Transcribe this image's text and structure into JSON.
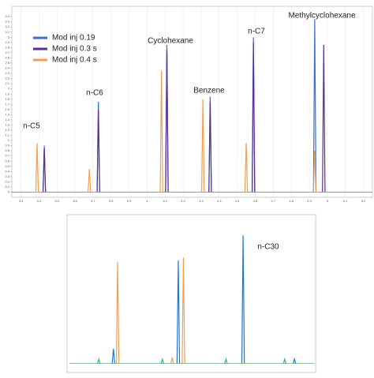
{
  "chart_data": [
    {
      "type": "chromatogram",
      "annotations": [
        "n-C5",
        "n-C6",
        "Cyclohexane",
        "Benzene",
        "n-C7",
        "Methylcyclohexane"
      ],
      "xlim": [
        3.25,
        5.25
      ],
      "xticks": [
        3.3,
        3.4,
        3.5,
        3.6,
        3.7,
        3.8,
        3.9,
        4,
        4.1,
        4.2,
        4.3,
        4.4,
        4.5,
        4.6,
        4.7,
        4.8,
        4.9,
        5,
        5.1,
        5.2
      ],
      "ylim": [
        -0.1,
        3.6
      ],
      "yticks": [
        0,
        0.1,
        0.2,
        0.3,
        0.4,
        0.5,
        0.6,
        0.7,
        0.8,
        0.9,
        1,
        1.1,
        1.2,
        1.3,
        1.4,
        1.5,
        1.6,
        1.7,
        1.8,
        1.9,
        2,
        2.1,
        2.2,
        2.3,
        2.4,
        2.5,
        2.6,
        2.7,
        2.8,
        2.9,
        3,
        3.1,
        3.2,
        3.3,
        3.4
      ],
      "grid": true,
      "series": [
        {
          "name": "Mod inj 0.19",
          "color": "#3b6fd0",
          "x": [
            3.43,
            3.73,
            4.11,
            4.35,
            4.59,
            4.93
          ],
          "values": [
            0.9,
            1.75,
            2.85,
            1.85,
            3.0,
            3.35
          ]
        },
        {
          "name": "Mod inj 0.3 s",
          "color": "#5a2d90",
          "x": [
            3.43,
            3.73,
            4.11,
            4.35,
            4.59,
            4.98
          ],
          "values": [
            0.85,
            1.6,
            2.75,
            1.75,
            2.9,
            2.85
          ]
        },
        {
          "name": "Mod inj 0.4 s",
          "color": "#f0a050",
          "x": [
            3.39,
            3.68,
            4.08,
            4.31,
            4.55,
            4.93
          ],
          "values": [
            0.95,
            0.45,
            2.35,
            1.8,
            0.95,
            0.8
          ]
        }
      ]
    },
    {
      "type": "chromatogram",
      "annotations": [
        "n-C30"
      ],
      "xlim": [
        0,
        100
      ],
      "ylim": [
        -5,
        100
      ],
      "grid": false,
      "series": [
        {
          "color": "#1f77d4",
          "x": [
            18,
            44.5,
            71,
            92
          ],
          "values": [
            10,
            70,
            87,
            3
          ]
        },
        {
          "color": "#f0a050",
          "x": [
            19.7,
            46.6,
            42
          ],
          "values": [
            69,
            72,
            4
          ]
        },
        {
          "color": "#3cb371",
          "x": [
            12,
            38,
            64,
            88
          ],
          "values": [
            3,
            3,
            3,
            3
          ]
        }
      ]
    }
  ]
}
